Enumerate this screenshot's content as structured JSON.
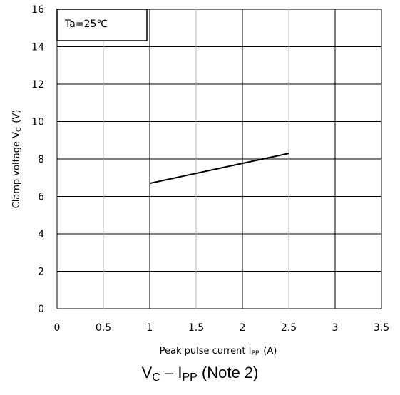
{
  "chart_data": {
    "type": "line",
    "annotation": "Ta=25℃",
    "xlabel": {
      "main": "Peak pulse current I",
      "sub": "PP",
      "unit": "(A)"
    },
    "ylabel": {
      "main": "Clamp voltage  V",
      "sub": "C",
      "unit": "(V)"
    },
    "xlim": [
      0,
      3.5
    ],
    "ylim": [
      0,
      16
    ],
    "xticks": [
      "0",
      "0.5",
      "1",
      "1.5",
      "2",
      "2.5",
      "3",
      "3.5"
    ],
    "yticks": [
      "0",
      "2",
      "4",
      "6",
      "8",
      "10",
      "12",
      "14",
      "16"
    ],
    "grid": true,
    "series": [
      {
        "x": [
          1.0,
          2.5
        ],
        "y": [
          6.7,
          8.3
        ]
      }
    ]
  },
  "caption": {
    "v": "V",
    "v_sub": "C",
    "dash": " – I",
    "i_sub": "PP",
    "note": " (Note 2)"
  },
  "colors": {
    "grid_major": "#000000",
    "grid_minor": "#b0b0b0",
    "line": "#000000"
  }
}
